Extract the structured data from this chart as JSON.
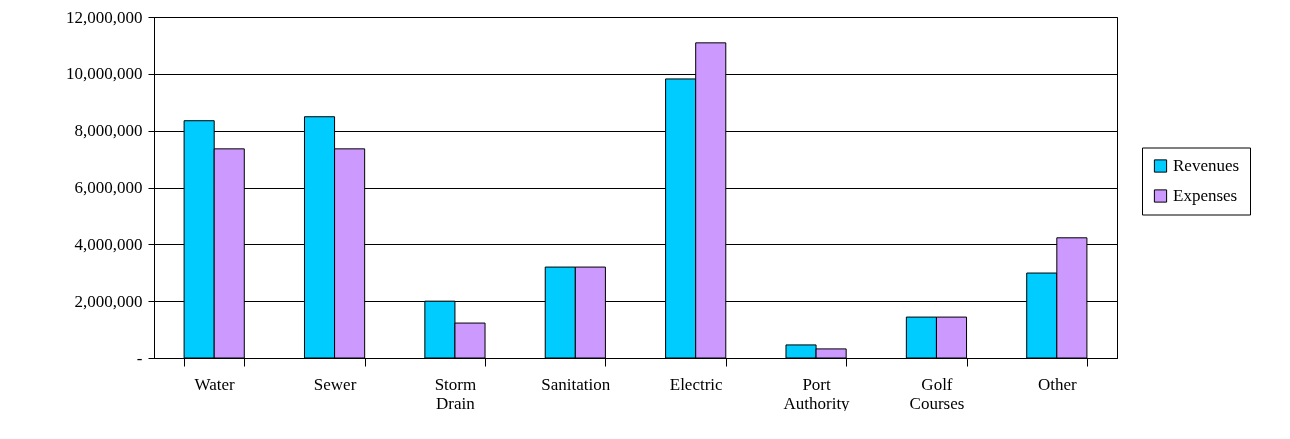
{
  "chart_data": {
    "type": "bar",
    "categories": [
      "Water",
      "Sewer",
      "Storm Drain",
      "Sanitation",
      "Electric",
      "Port Authority",
      "Golf Courses",
      "Other"
    ],
    "series": [
      {
        "name": "Revenues",
        "color": "#00ccff",
        "values": [
          8350000,
          8490000,
          2000000,
          3200000,
          9820000,
          460000,
          1440000,
          2990000
        ]
      },
      {
        "name": "Expenses",
        "color": "#cc99ff",
        "values": [
          7360000,
          7360000,
          1230000,
          3200000,
          11090000,
          320000,
          1440000,
          4230000
        ]
      }
    ],
    "ylim": [
      0,
      12000000
    ],
    "yticks": [
      {
        "value": 0,
        "label": "-"
      },
      {
        "value": 2000000,
        "label": "2,000,000"
      },
      {
        "value": 4000000,
        "label": "4,000,000"
      },
      {
        "value": 6000000,
        "label": "6,000,000"
      },
      {
        "value": 8000000,
        "label": "8,000,000"
      },
      {
        "value": 10000000,
        "label": "10,000,000"
      },
      {
        "value": 12000000,
        "label": "12,000,000"
      }
    ],
    "grid": "y",
    "legend": "right"
  }
}
